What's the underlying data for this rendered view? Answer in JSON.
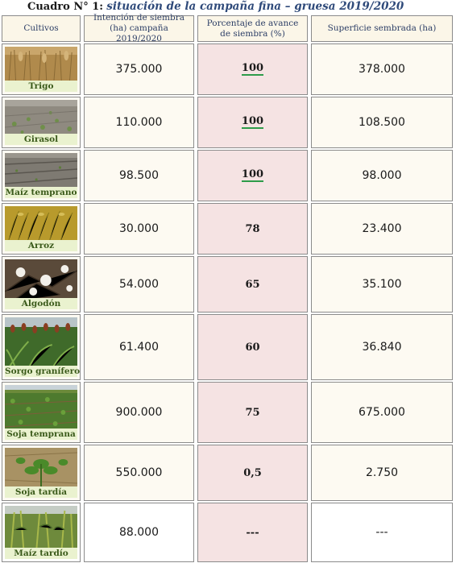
{
  "caption": {
    "lead": "Cuadro N° 1:",
    "title": "situación de la campaña fina – gruesa 2019/2020"
  },
  "headers": {
    "cultivos": "Cultivos",
    "intencion": "Intención de siembra (ha) campaña 2019/2020",
    "porcentaje": "Porcentaje de avance de siembra (%)",
    "superficie": "Superficie sembrada (ha)"
  },
  "rows": [
    {
      "crop": "Trigo",
      "intencion": "375.000",
      "porcentaje": "100",
      "superficie": "378.000"
    },
    {
      "crop": "Girasol",
      "intencion": "110.000",
      "porcentaje": "100",
      "superficie": "108.500"
    },
    {
      "crop": "Maíz temprano",
      "intencion": "98.500",
      "porcentaje": "100",
      "superficie": "98.000"
    },
    {
      "crop": "Arroz",
      "intencion": "30.000",
      "porcentaje": "78",
      "superficie": "23.400"
    },
    {
      "crop": "Algodón",
      "intencion": "54.000",
      "porcentaje": "65",
      "superficie": "35.100"
    },
    {
      "crop": "Sorgo granífero",
      "intencion": "61.400",
      "porcentaje": "60",
      "superficie": "36.840"
    },
    {
      "crop": "Soja temprana",
      "intencion": "900.000",
      "porcentaje": "75",
      "superficie": "675.000"
    },
    {
      "crop": "Soja tardía",
      "intencion": "550.000",
      "porcentaje": "0,5",
      "superficie": "2.750"
    },
    {
      "crop": "Maíz tardío",
      "intencion": "88.000",
      "porcentaje": "---",
      "superficie": "---"
    }
  ]
}
